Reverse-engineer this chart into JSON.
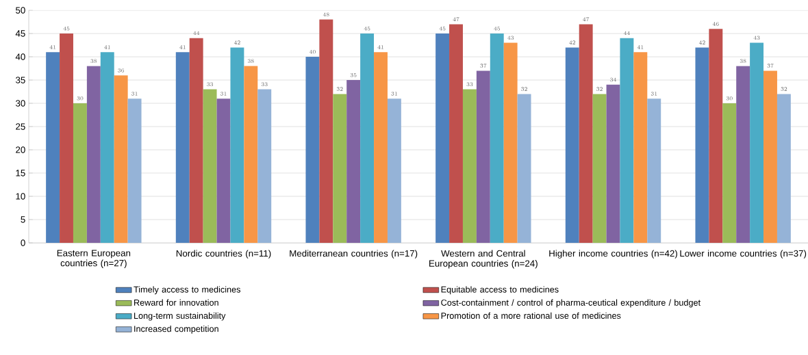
{
  "chart_data": {
    "type": "bar",
    "categories": [
      "Eastern European countries (n=27)",
      "Nordic countries (n=11)",
      "Mediterranean countries (n=17)",
      "Western and Central European countries (n=24)",
      "Higher income countries (n=42)",
      "Lower income countries (n=37)"
    ],
    "series": [
      {
        "name": "Timely access to medicines",
        "color": "#4f81bd",
        "values": [
          41,
          41,
          40,
          45,
          42,
          42
        ]
      },
      {
        "name": "Equitable access to medicines",
        "color": "#c0504d",
        "values": [
          45,
          44,
          48,
          47,
          47,
          46
        ]
      },
      {
        "name": "Reward for innovation",
        "color": "#9bbb59",
        "values": [
          30,
          33,
          32,
          33,
          32,
          30
        ]
      },
      {
        "name": "Cost-containment / control of pharma-ceutical expenditure / budget",
        "color": "#8064a2",
        "values": [
          38,
          31,
          35,
          37,
          34,
          38
        ]
      },
      {
        "name": "Long-term sustainability",
        "color": "#4bacc6",
        "values": [
          41,
          42,
          45,
          45,
          44,
          43
        ]
      },
      {
        "name": "Promotion of a more rational use of medicines",
        "color": "#f79646",
        "values": [
          36,
          38,
          41,
          43,
          41,
          37
        ]
      },
      {
        "name": "Increased competition",
        "color": "#95b3d7",
        "values": [
          31,
          33,
          31,
          32,
          31,
          32
        ]
      }
    ],
    "ylim": [
      0,
      50
    ],
    "yticks": [
      0,
      5,
      10,
      15,
      20,
      25,
      30,
      35,
      40,
      45,
      50
    ],
    "grid": "y",
    "legend": "bottom",
    "data_labels": true
  }
}
